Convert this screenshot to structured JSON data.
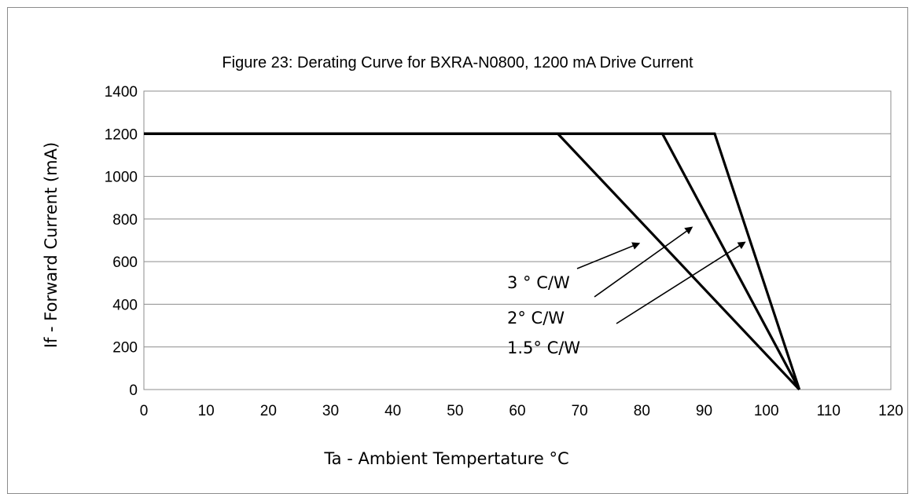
{
  "chart_data": {
    "type": "line",
    "title": "Figure 23:  Derating Curve for BXRA-N0800, 1200 mA Drive Current",
    "xlabel": "Ta - Ambient Tempertature °C",
    "ylabel": "If - Forward Current (mA)",
    "xlim": [
      0,
      120
    ],
    "ylim": [
      0,
      1400
    ],
    "xticks": [
      0,
      10,
      20,
      30,
      40,
      50,
      60,
      70,
      80,
      90,
      100,
      110,
      120
    ],
    "yticks": [
      0,
      200,
      400,
      600,
      800,
      1000,
      1200,
      1400
    ],
    "grid": "horizontal",
    "legend": "none",
    "series": [
      {
        "name": "3 ° C/W",
        "x": [
          0,
          66.5,
          105.3
        ],
        "y": [
          1200,
          1200,
          0
        ]
      },
      {
        "name": "2° C/W",
        "x": [
          0,
          83.3,
          105.3
        ],
        "y": [
          1200,
          1200,
          0
        ]
      },
      {
        "name": "1.5° C/W",
        "x": [
          0,
          91.7,
          105.3
        ],
        "y": [
          1200,
          1200,
          0
        ]
      }
    ],
    "annotations": [
      {
        "text": "3 ° C/W",
        "arrow_to": [
          79.5,
          685
        ]
      },
      {
        "text": "2° C/W",
        "arrow_to": [
          88,
          760
        ]
      },
      {
        "text": "1.5° C/W",
        "arrow_to": [
          96.5,
          690
        ]
      }
    ]
  }
}
